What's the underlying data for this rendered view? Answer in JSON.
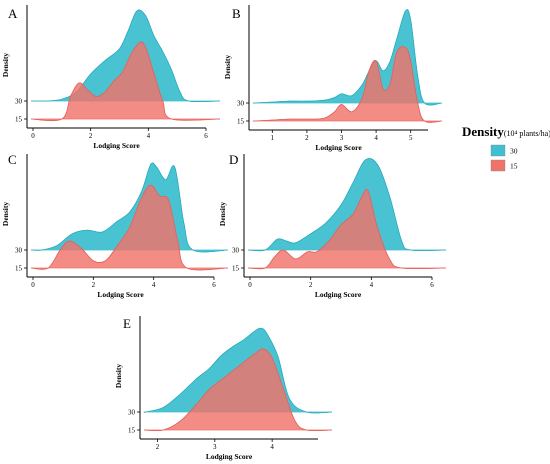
{
  "legend": {
    "title": "Density",
    "subtitle": "(10⁴ plants/ha)",
    "items": [
      {
        "label": "30",
        "color": "#3FC0D0"
      },
      {
        "label": "15",
        "color": "#F0736A"
      }
    ]
  },
  "chart_data": [
    {
      "panel": "A",
      "type": "area",
      "xlabel": "Lodging Score",
      "ylabel": "Density",
      "xlim": [
        0,
        6
      ],
      "xticks": [
        0,
        2,
        4,
        6
      ],
      "ridges": [
        {
          "name": "30",
          "color": "#3FC0D0",
          "x": [
            0.5,
            1.0,
            1.5,
            2.0,
            2.5,
            3.0,
            3.3,
            3.6,
            3.9,
            4.2,
            4.5,
            4.8,
            5.1,
            5.4
          ],
          "y": [
            0,
            0.02,
            0.1,
            0.3,
            0.45,
            0.58,
            0.78,
            1.0,
            0.95,
            0.72,
            0.55,
            0.35,
            0.1,
            0
          ]
        },
        {
          "name": "15",
          "color": "#F0736A",
          "x": [
            1.0,
            1.3,
            1.6,
            1.9,
            2.2,
            2.5,
            2.8,
            3.1,
            3.4,
            3.7,
            3.9,
            4.2,
            4.5,
            4.8
          ],
          "y": [
            0,
            0.25,
            0.4,
            0.32,
            0.25,
            0.3,
            0.42,
            0.52,
            0.72,
            0.85,
            0.8,
            0.5,
            0.2,
            0
          ]
        }
      ],
      "ridge_labels": [
        "30",
        "15"
      ]
    },
    {
      "panel": "B",
      "type": "area",
      "xlabel": "Lodging Score",
      "ylabel": "Density",
      "xlim": [
        0.5,
        5.5
      ],
      "xticks": [
        1,
        2,
        3,
        4,
        5
      ],
      "ridges": [
        {
          "name": "30",
          "color": "#3FC0D0",
          "x": [
            0.5,
            1.0,
            1.5,
            2.0,
            2.5,
            2.8,
            3.0,
            3.3,
            3.6,
            3.8,
            4.0,
            4.2,
            4.4,
            4.6,
            4.85,
            5.0,
            5.2,
            5.4
          ],
          "y": [
            0,
            0.01,
            0.02,
            0.02,
            0.03,
            0.06,
            0.1,
            0.08,
            0.2,
            0.35,
            0.46,
            0.35,
            0.45,
            0.7,
            1.0,
            0.9,
            0.3,
            0
          ]
        },
        {
          "name": "15",
          "color": "#F0736A",
          "x": [
            0.5,
            1.0,
            1.5,
            2.0,
            2.5,
            2.8,
            3.0,
            3.3,
            3.6,
            3.8,
            4.0,
            4.2,
            4.4,
            4.6,
            4.85,
            5.0,
            5.2,
            5.4
          ],
          "y": [
            0,
            0.01,
            0.02,
            0.02,
            0.03,
            0.1,
            0.18,
            0.1,
            0.25,
            0.55,
            0.65,
            0.35,
            0.4,
            0.75,
            0.8,
            0.65,
            0.2,
            0
          ]
        }
      ],
      "ridge_labels": [
        "30",
        "15"
      ]
    },
    {
      "panel": "C",
      "type": "area",
      "xlabel": "Lodging Score",
      "ylabel": "Density",
      "xlim": [
        0,
        6
      ],
      "xticks": [
        0,
        2,
        4,
        6
      ],
      "ridges": [
        {
          "name": "30",
          "color": "#3FC0D0",
          "x": [
            0.3,
            0.8,
            1.3,
            1.8,
            2.3,
            2.8,
            3.2,
            3.6,
            3.9,
            4.1,
            4.4,
            4.7,
            5.0,
            5.3
          ],
          "y": [
            0,
            0.05,
            0.18,
            0.22,
            0.2,
            0.32,
            0.42,
            0.65,
            0.95,
            0.92,
            0.78,
            0.92,
            0.3,
            0
          ]
        },
        {
          "name": "15",
          "color": "#F0736A",
          "x": [
            0.5,
            0.9,
            1.2,
            1.6,
            2.0,
            2.4,
            2.8,
            3.2,
            3.6,
            3.9,
            4.2,
            4.5,
            4.8,
            5.1
          ],
          "y": [
            0,
            0.2,
            0.3,
            0.22,
            0.08,
            0.08,
            0.25,
            0.45,
            0.78,
            0.92,
            0.8,
            0.75,
            0.3,
            0
          ]
        }
      ],
      "ridge_labels": [
        "30",
        "15"
      ]
    },
    {
      "panel": "D",
      "type": "area",
      "xlabel": "Lodging Score",
      "ylabel": "Density",
      "xlim": [
        0,
        6
      ],
      "xticks": [
        0,
        2,
        4,
        6
      ],
      "ridges": [
        {
          "name": "30",
          "color": "#3FC0D0",
          "x": [
            0.5,
            0.9,
            1.2,
            1.5,
            2.0,
            2.5,
            3.0,
            3.4,
            3.8,
            4.2,
            4.6,
            5.0,
            5.3
          ],
          "y": [
            0,
            0.12,
            0.1,
            0.08,
            0.18,
            0.3,
            0.5,
            0.75,
            1.0,
            0.95,
            0.6,
            0.1,
            0
          ]
        },
        {
          "name": "15",
          "color": "#F0736A",
          "x": [
            0.5,
            0.8,
            1.1,
            1.5,
            1.9,
            2.2,
            2.6,
            3.0,
            3.4,
            3.7,
            3.9,
            4.2,
            4.6,
            5.0
          ],
          "y": [
            0,
            0.12,
            0.2,
            0.1,
            0.18,
            0.18,
            0.3,
            0.48,
            0.6,
            0.8,
            0.85,
            0.45,
            0.1,
            0
          ]
        }
      ],
      "ridge_labels": [
        "30",
        "15"
      ]
    },
    {
      "panel": "E",
      "type": "area",
      "xlabel": "Lodging Score",
      "ylabel": "Density",
      "xlim": [
        1.8,
        4.8
      ],
      "xticks": [
        2,
        3,
        4
      ],
      "ridges": [
        {
          "name": "30",
          "color": "#3FC0D0",
          "x": [
            1.8,
            2.1,
            2.4,
            2.7,
            2.9,
            3.1,
            3.3,
            3.5,
            3.7,
            3.8,
            3.9,
            4.1,
            4.3,
            4.6
          ],
          "y": [
            0,
            0.05,
            0.2,
            0.38,
            0.48,
            0.62,
            0.72,
            0.8,
            0.9,
            0.93,
            0.88,
            0.62,
            0.15,
            0
          ]
        },
        {
          "name": "15",
          "color": "#F0736A",
          "x": [
            2.1,
            2.4,
            2.7,
            2.9,
            3.1,
            3.3,
            3.5,
            3.7,
            3.85,
            4.0,
            4.2,
            4.4,
            4.6
          ],
          "y": [
            0,
            0.1,
            0.3,
            0.45,
            0.55,
            0.65,
            0.75,
            0.85,
            0.9,
            0.8,
            0.45,
            0.1,
            0
          ]
        }
      ],
      "ridge_labels": [
        "30",
        "15"
      ]
    }
  ]
}
